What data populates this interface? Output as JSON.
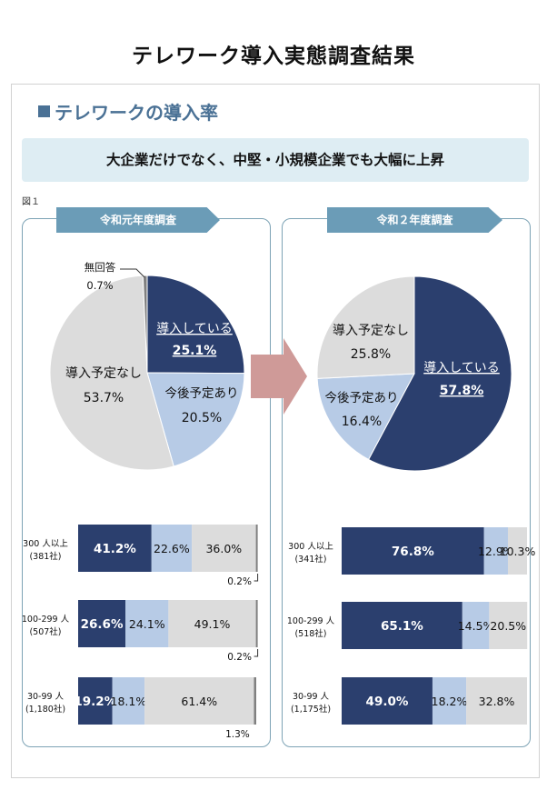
{
  "title": "テレワーク導入実態調査結果",
  "section_heading": "テレワークの導入率",
  "banner_text": "大企業だけでなく、中堅・小規模企業でも大幅に上昇",
  "figure_label": "図１",
  "colors": {
    "implemented": "#2b3f6e",
    "planned": "#b7cbe6",
    "no_plan": "#dcdcdc",
    "no_answer": "#808080",
    "ribbon": "#6b9cb7",
    "arrow": "#cf9a98"
  },
  "chart_data": [
    {
      "type": "pie",
      "title": "令和元年度調査",
      "slices": [
        {
          "label": "導入している",
          "value": 25.1,
          "value_label": "25.1%",
          "category": "implemented"
        },
        {
          "label": "今後予定あり",
          "value": 20.5,
          "value_label": "20.5%",
          "category": "planned"
        },
        {
          "label": "導入予定なし",
          "value": 53.7,
          "value_label": "53.7%",
          "category": "no_plan"
        },
        {
          "label": "無回答",
          "value": 0.7,
          "value_label": "0.7%",
          "category": "no_answer"
        }
      ]
    },
    {
      "type": "pie",
      "title": "令和２年度調査",
      "slices": [
        {
          "label": "導入している",
          "value": 57.8,
          "value_label": "57.8%",
          "category": "implemented"
        },
        {
          "label": "今後予定あり",
          "value": 16.4,
          "value_label": "16.4%",
          "category": "planned"
        },
        {
          "label": "導入予定なし",
          "value": 25.8,
          "value_label": "25.8%",
          "category": "no_plan"
        }
      ]
    },
    {
      "type": "bar",
      "orientation": "horizontal-stacked",
      "title": "令和元年度調査",
      "rows": [
        {
          "label": "300 人以上",
          "count": "(381社)",
          "segments": [
            {
              "category": "implemented",
              "value": 41.2,
              "label": "41.2%"
            },
            {
              "category": "planned",
              "value": 22.6,
              "label": "22.6%"
            },
            {
              "category": "no_plan",
              "value": 36.0,
              "label": "36.0%"
            },
            {
              "category": "no_answer",
              "value": 0.2,
              "label": "0.2%"
            }
          ]
        },
        {
          "label": "100-299 人",
          "count": "(507社)",
          "segments": [
            {
              "category": "implemented",
              "value": 26.6,
              "label": "26.6%"
            },
            {
              "category": "planned",
              "value": 24.1,
              "label": "24.1%"
            },
            {
              "category": "no_plan",
              "value": 49.1,
              "label": "49.1%"
            },
            {
              "category": "no_answer",
              "value": 0.2,
              "label": "0.2%"
            }
          ]
        },
        {
          "label": "30-99 人",
          "count": "(1,180社)",
          "segments": [
            {
              "category": "implemented",
              "value": 19.2,
              "label": "19.2%"
            },
            {
              "category": "planned",
              "value": 18.1,
              "label": "18.1%"
            },
            {
              "category": "no_plan",
              "value": 61.4,
              "label": "61.4%"
            },
            {
              "category": "no_answer",
              "value": 1.3,
              "label": "1.3%"
            }
          ]
        }
      ]
    },
    {
      "type": "bar",
      "orientation": "horizontal-stacked",
      "title": "令和２年度調査",
      "rows": [
        {
          "label": "300 人以上",
          "count": "(341社)",
          "segments": [
            {
              "category": "implemented",
              "value": 76.8,
              "label": "76.8%"
            },
            {
              "category": "planned",
              "value": 12.9,
              "label": "12.9%"
            },
            {
              "category": "no_plan",
              "value": 10.3,
              "label": "10.3%"
            }
          ]
        },
        {
          "label": "100-299 人",
          "count": "(518社)",
          "segments": [
            {
              "category": "implemented",
              "value": 65.1,
              "label": "65.1%"
            },
            {
              "category": "planned",
              "value": 14.5,
              "label": "14.5%"
            },
            {
              "category": "no_plan",
              "value": 20.5,
              "label": "20.5%"
            }
          ]
        },
        {
          "label": "30-99 人",
          "count": "(1,175社)",
          "segments": [
            {
              "category": "implemented",
              "value": 49.0,
              "label": "49.0%"
            },
            {
              "category": "planned",
              "value": 18.2,
              "label": "18.2%"
            },
            {
              "category": "no_plan",
              "value": 32.8,
              "label": "32.8%"
            }
          ]
        }
      ]
    }
  ]
}
